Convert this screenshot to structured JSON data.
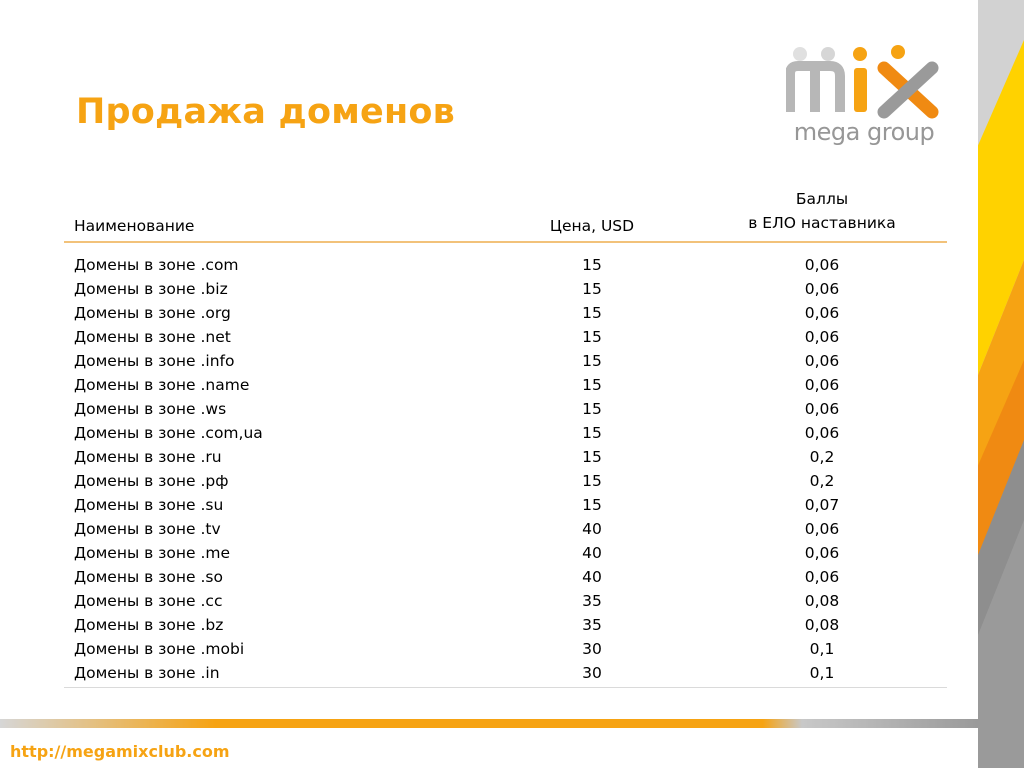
{
  "title": "Продажа доменов",
  "logo": {
    "wordmark": "mix",
    "tagline": "mega group"
  },
  "table": {
    "headers": {
      "name": "Наименование",
      "price": "Цена, USD",
      "points_line1": "Баллы",
      "points_line2": "в ЕЛО наставника"
    },
    "rows": [
      {
        "name": "Домены в зоне .com",
        "price": "15",
        "points": "0,06"
      },
      {
        "name": "Домены в зоне .biz",
        "price": "15",
        "points": "0,06"
      },
      {
        "name": "Домены в зоне .org",
        "price": "15",
        "points": "0,06"
      },
      {
        "name": "Домены в зоне .net",
        "price": "15",
        "points": "0,06"
      },
      {
        "name": "Домены в зоне .info",
        "price": "15",
        "points": "0,06"
      },
      {
        "name": "Домены в зоне .name",
        "price": "15",
        "points": "0,06"
      },
      {
        "name": "Домены в зоне .ws",
        "price": "15",
        "points": "0,06"
      },
      {
        "name": "Домены в зоне .com,ua",
        "price": "15",
        "points": "0,06"
      },
      {
        "name": "Домены в зоне .ru",
        "price": "15",
        "points": "0,2"
      },
      {
        "name": "Домены в зоне .рф",
        "price": "15",
        "points": "0,2"
      },
      {
        "name": "Домены в зоне .su",
        "price": "15",
        "points": "0,07"
      },
      {
        "name": "Домены в зоне .tv",
        "price": "40",
        "points": "0,06"
      },
      {
        "name": "Домены в зоне .me",
        "price": "40",
        "points": "0,06"
      },
      {
        "name": "Домены в зоне .so",
        "price": "40",
        "points": "0,06"
      },
      {
        "name": "Домены в зоне .cc",
        "price": "35",
        "points": "0,08"
      },
      {
        "name": "Домены в зоне .bz",
        "price": "35",
        "points": "0,08"
      },
      {
        "name": "Домены в зоне .mobi",
        "price": "30",
        "points": "0,1"
      },
      {
        "name": "Домены в зоне .in",
        "price": "30",
        "points": "0,1"
      }
    ]
  },
  "footer": {
    "url": "http://megamixclub.com"
  },
  "colors": {
    "accent": "#f6a313",
    "accent_dark": "#e57f10",
    "gray": "#8c8c8c",
    "light_gray": "#c8c8c8"
  }
}
